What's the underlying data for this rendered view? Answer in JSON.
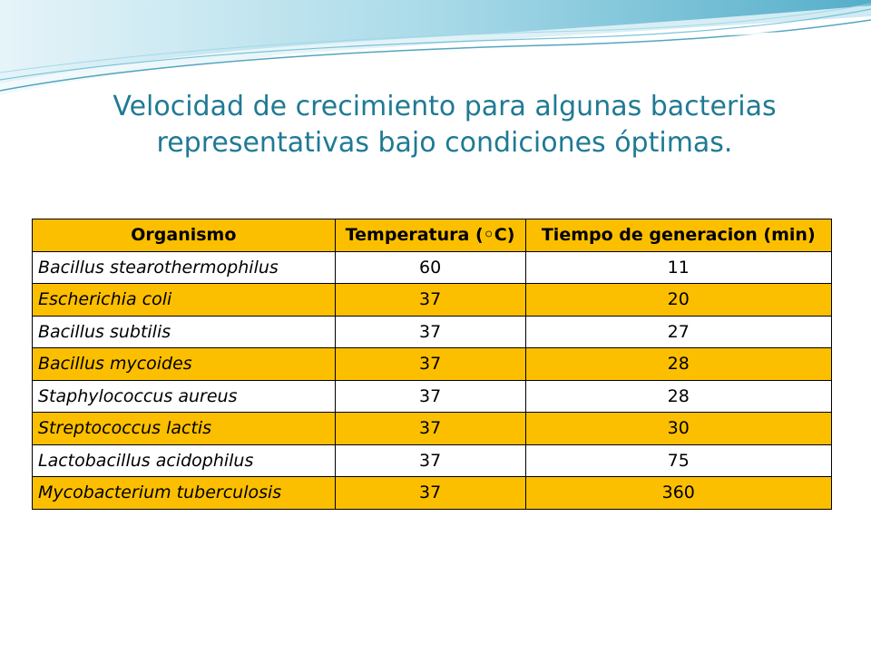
{
  "slide": {
    "title_line1": "Velocidad de crecimiento para algunas bacterias",
    "title_line2": "representativas bajo condiciones óptimas."
  },
  "table": {
    "headers": [
      "Organismo",
      "Temperatura (◦C)",
      "Tiempo de generacion (min)"
    ],
    "rows": [
      {
        "organism": "Bacillus stearothermophilus",
        "temperature": "60",
        "time": "11"
      },
      {
        "organism": "Escherichia coli",
        "temperature": "37",
        "time": "20"
      },
      {
        "organism": "Bacillus subtilis",
        "temperature": "37",
        "time": "27"
      },
      {
        "organism": "Bacillus mycoides",
        "temperature": "37",
        "time": "28"
      },
      {
        "organism": "Staphylococcus aureus",
        "temperature": "37",
        "time": "28"
      },
      {
        "organism": "Streptococcus lactis",
        "temperature": "37",
        "time": "30"
      },
      {
        "organism": "Lactobacillus acidophilus",
        "temperature": "37",
        "time": "75"
      },
      {
        "organism": "Mycobacterium tuberculosis",
        "temperature": "37",
        "time": "360"
      }
    ]
  },
  "colors": {
    "title": "#1f7a94",
    "highlight": "#fcbf00",
    "wave_light": "#bfe4ef",
    "wave_mid": "#7cc6dc",
    "wave_dark": "#2a8fb0"
  }
}
